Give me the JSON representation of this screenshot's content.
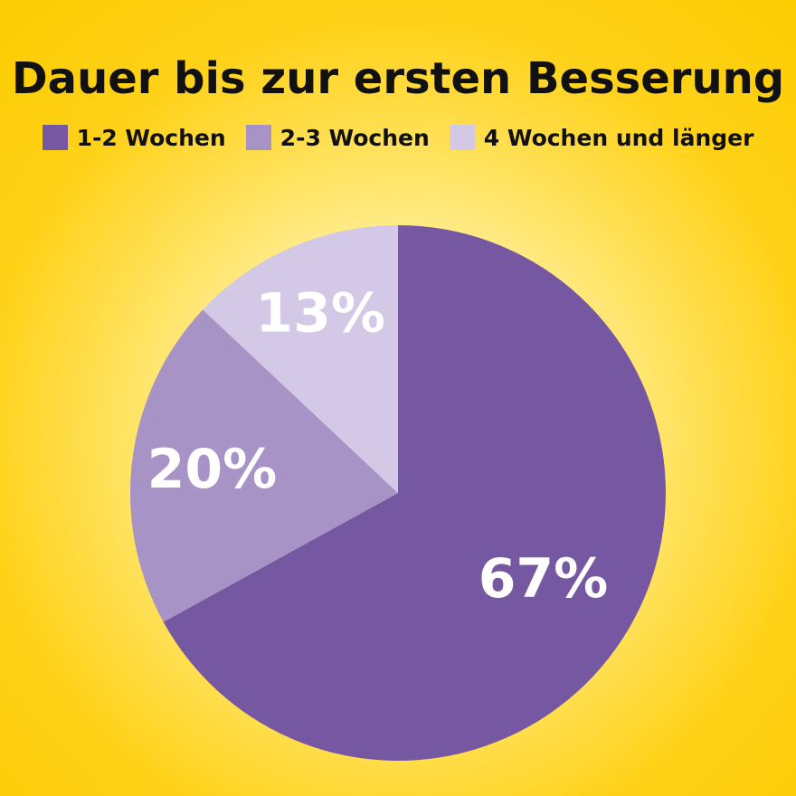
{
  "chart_data": {
    "type": "pie",
    "title": "Dauer bis zur ersten Besserung",
    "legend_position": "top",
    "slices": [
      {
        "name": "1-2 Wochen",
        "value": 67,
        "label": "67%",
        "color": "#7657a2"
      },
      {
        "name": "2-3 Wochen",
        "value": 20,
        "label": "20%",
        "color": "#a893c7"
      },
      {
        "name": "4 Wochen und länger",
        "value": 13,
        "label": "13%",
        "color": "#d3c8e5"
      }
    ]
  },
  "colors": {
    "background": "#fccc00",
    "title_text": "#111111",
    "slice_label_text": "#ffffff"
  }
}
